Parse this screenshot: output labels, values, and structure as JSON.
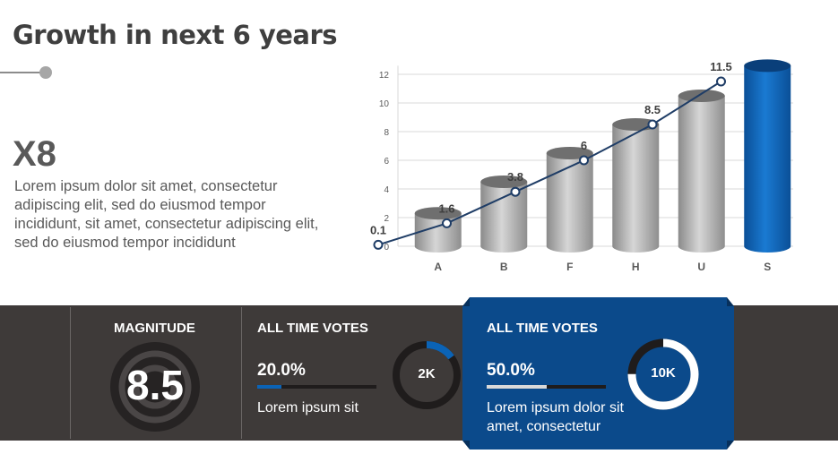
{
  "slide": {
    "title": "Growth in next 6 years",
    "headline": "X8",
    "description": "Lorem ipsum dolor sit amet, consectetur adipiscing elit, sed do eiusmod tempor incididunt, sit amet, consectetur adipiscing elit, sed do eiusmod tempor incididunt"
  },
  "colors": {
    "bar_gray": "#a6a6a6",
    "bar_highlight": "#0b63b6",
    "line": "#1f3d66",
    "band": "#3e3a39",
    "panel_blue": "#0b4a8b"
  },
  "chart_data": {
    "type": "bar",
    "categories": [
      "A",
      "B",
      "F",
      "H",
      "U",
      "S"
    ],
    "series": [
      {
        "type": "bar",
        "values": [
          2.3,
          4.5,
          6.5,
          8.5,
          10.5,
          12.6
        ]
      },
      {
        "type": "line",
        "values": [
          0.1,
          1.6,
          3.8,
          6,
          8.5,
          11.5
        ],
        "labels": [
          "0.1",
          "1.6",
          "3.8",
          "6",
          "8.5",
          "11.5"
        ]
      }
    ],
    "y_ticks": [
      0,
      2,
      4,
      6,
      8,
      10,
      12
    ],
    "ylim": [
      0,
      13
    ],
    "grid": true,
    "highlight_index": 5
  },
  "metrics": {
    "magnitude": {
      "label": "MAGNITUDE",
      "value": "8.5"
    },
    "votes_1": {
      "label": "ALL TIME VOTES",
      "percent_text": "20.0%",
      "percent": 0.2,
      "ring_value": "2K",
      "ring_fraction": 0.15,
      "caption": "Lorem ipsum sit"
    },
    "votes_2": {
      "label": "ALL TIME VOTES",
      "percent_text": "50.0%",
      "percent": 0.5,
      "ring_value": "10K",
      "ring_fraction": 0.75,
      "caption": "Lorem ipsum dolor sit amet, consectetur"
    }
  }
}
